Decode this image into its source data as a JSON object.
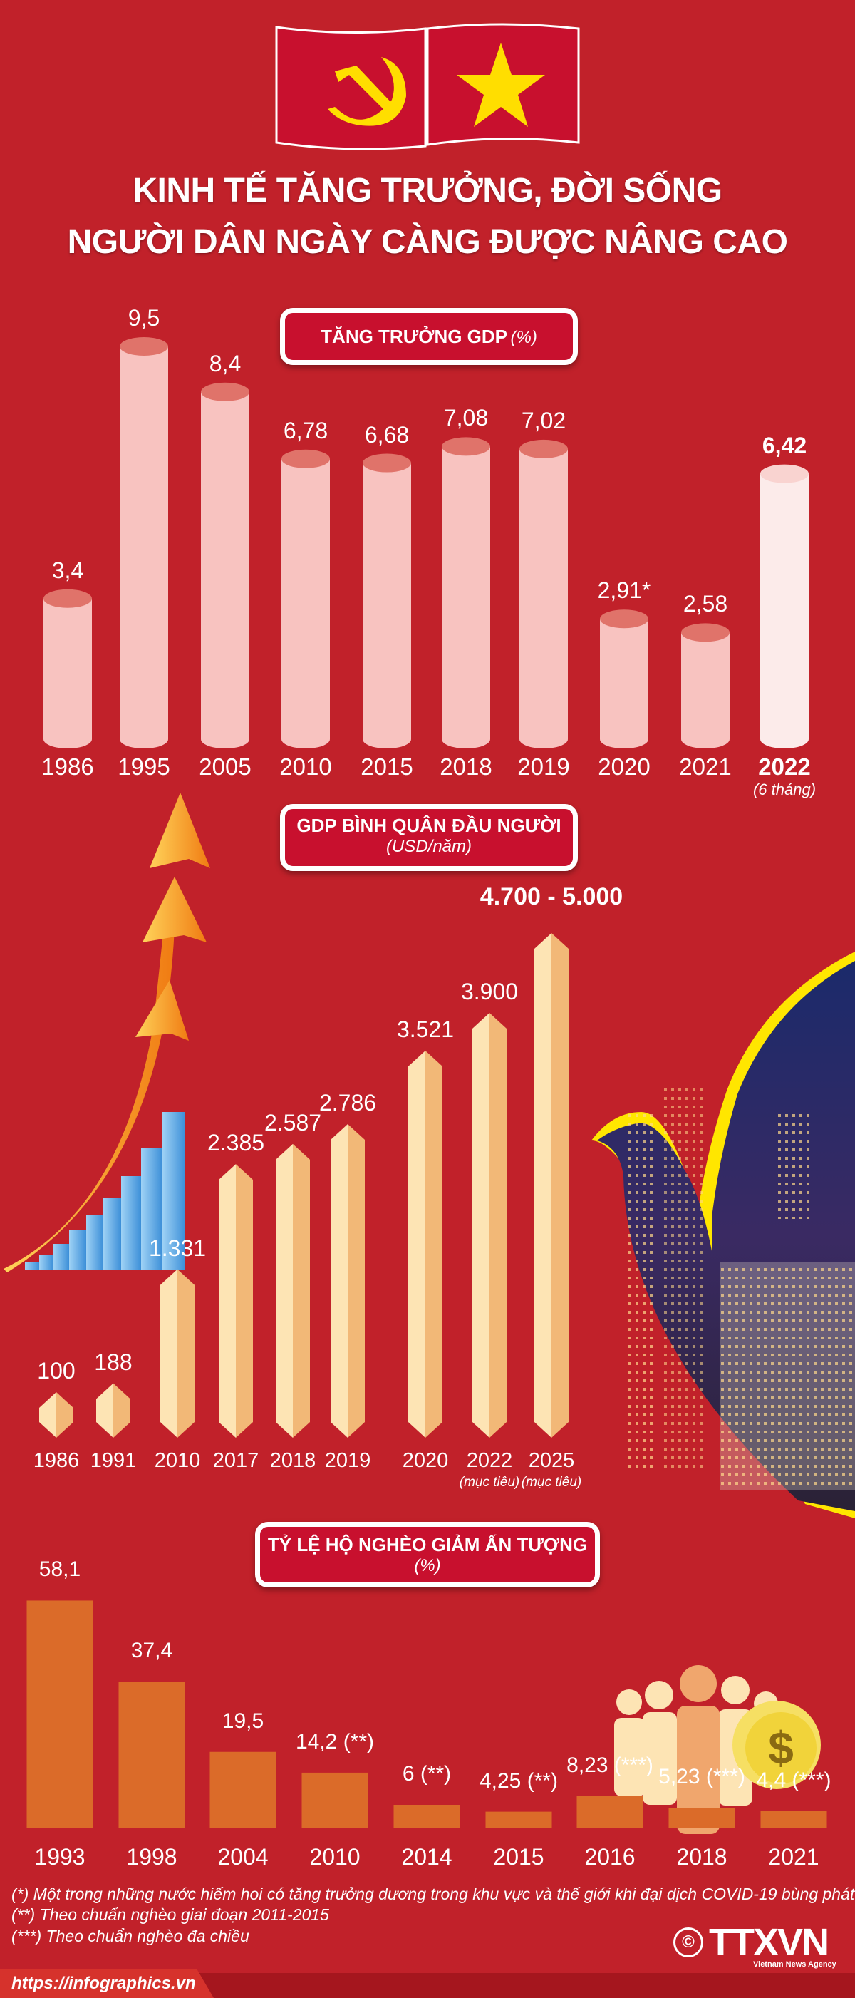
{
  "title": {
    "line1": "KINH TẾ TĂNG TRƯỞNG, ĐỜI SỐNG",
    "line2": "NGƯỜI DÂN NGÀY CÀNG ĐƯỢC NÂNG CAO"
  },
  "colors": {
    "background": "#c1212a",
    "pill": "#c8102e",
    "gdp_bar": "#f8c3c0",
    "gdp_bar_top": "#e0736a",
    "gdp_bar_highlight": "#fcebea",
    "per_capita_bar": "#fde4b4",
    "per_capita_bar_side": "#f2b877",
    "poverty_bar": "#db6b29",
    "flag_symbol": "#ffde00"
  },
  "chart_data": [
    {
      "type": "bar",
      "title": "TĂNG TRƯỞNG GDP",
      "unit": "(%)",
      "categories": [
        "1986",
        "1995",
        "2005",
        "2010",
        "2015",
        "2018",
        "2019",
        "2020",
        "2021",
        "2022"
      ],
      "labels": [
        "3,4",
        "9,5",
        "8,4",
        "6,78",
        "6,68",
        "7,08",
        "7,02",
        "2,91*",
        "2,58",
        "6,42"
      ],
      "values": [
        3.4,
        9.5,
        8.4,
        6.78,
        6.68,
        7.08,
        7.02,
        2.91,
        2.58,
        6.42
      ],
      "category_notes": [
        "",
        "",
        "",
        "",
        "",
        "",
        "",
        "",
        "",
        "(6 tháng)"
      ],
      "highlight_index": 9
    },
    {
      "type": "bar",
      "title": "GDP BÌNH QUÂN ĐẦU NGƯỜI",
      "unit": "(USD/năm)",
      "categories": [
        "1986",
        "1991",
        "2010",
        "2017",
        "2018",
        "2019",
        "2020",
        "2022",
        "2025"
      ],
      "labels": [
        "100",
        "188",
        "1.331",
        "2.385",
        "2.587",
        "2.786",
        "3.521",
        "3.900",
        "4.700 - 5.000"
      ],
      "values": [
        100,
        188,
        1331,
        2385,
        2587,
        2786,
        3521,
        3900,
        4700
      ],
      "value_range_last": [
        4700,
        5000
      ],
      "category_notes": [
        "",
        "",
        "",
        "",
        "",
        "",
        "",
        "(mục tiêu)",
        "(mục tiêu)"
      ],
      "highlight_index": 8
    },
    {
      "type": "bar",
      "title": "TỶ LỆ HỘ NGHÈO GIẢM ẤN TƯỢNG",
      "unit": "(%)",
      "categories": [
        "1993",
        "1998",
        "2004",
        "2010",
        "2014",
        "2015",
        "2016",
        "2018",
        "2021"
      ],
      "labels": [
        "58,1",
        "37,4",
        "19,5",
        "14,2 (**)",
        "6 (**)",
        "4,25 (**)",
        "8,23 (***)",
        "5,23 (***)",
        "4,4 (***)"
      ],
      "values": [
        58.1,
        37.4,
        19.5,
        14.2,
        6,
        4.25,
        8.23,
        5.23,
        4.4
      ]
    }
  ],
  "footnotes": [
    "(*) Một trong những nước hiếm hoi có tăng trưởng dương trong khu vực và thế giới khi đại dịch COVID-19 bùng phát",
    "(**) Theo chuẩn nghèo giai đoạn 2011-2015",
    "(***) Theo chuẩn nghèo đa chiều"
  ],
  "logo": {
    "copyright": "©",
    "brand": "TTXVN",
    "tagline": "Vietnam News Agency"
  },
  "footer": {
    "url": "https://infographics.vn"
  },
  "icons": [
    "party-flag-icon",
    "vietnam-flag-icon",
    "growth-arrow-icon",
    "city-dove-image",
    "people-coin-icon"
  ]
}
